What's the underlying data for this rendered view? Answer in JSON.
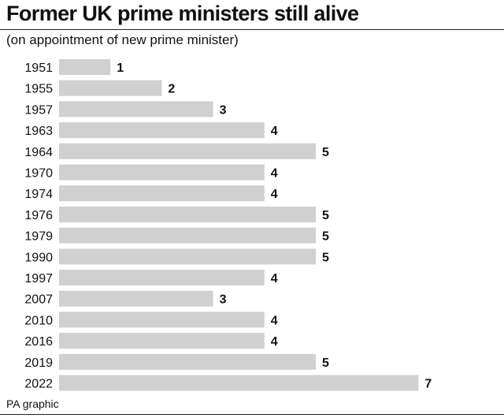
{
  "title": "Former UK prime ministers still alive",
  "subtitle": "(on appointment of new prime minister)",
  "source": "PA graphic",
  "bar_color": "#d0d0d0",
  "chart_data": {
    "type": "bar",
    "orientation": "horizontal",
    "categories": [
      "1951",
      "1955",
      "1957",
      "1963",
      "1964",
      "1970",
      "1974",
      "1976",
      "1979",
      "1990",
      "1997",
      "2007",
      "2010",
      "2016",
      "2019",
      "2022"
    ],
    "values": [
      1,
      2,
      3,
      4,
      5,
      4,
      4,
      5,
      5,
      5,
      4,
      3,
      4,
      4,
      5,
      7
    ],
    "title": "Former UK prime ministers still alive",
    "subtitle": "(on appointment of new prime minister)",
    "xlim": [
      0,
      7
    ],
    "grid": false,
    "legend": "none"
  }
}
